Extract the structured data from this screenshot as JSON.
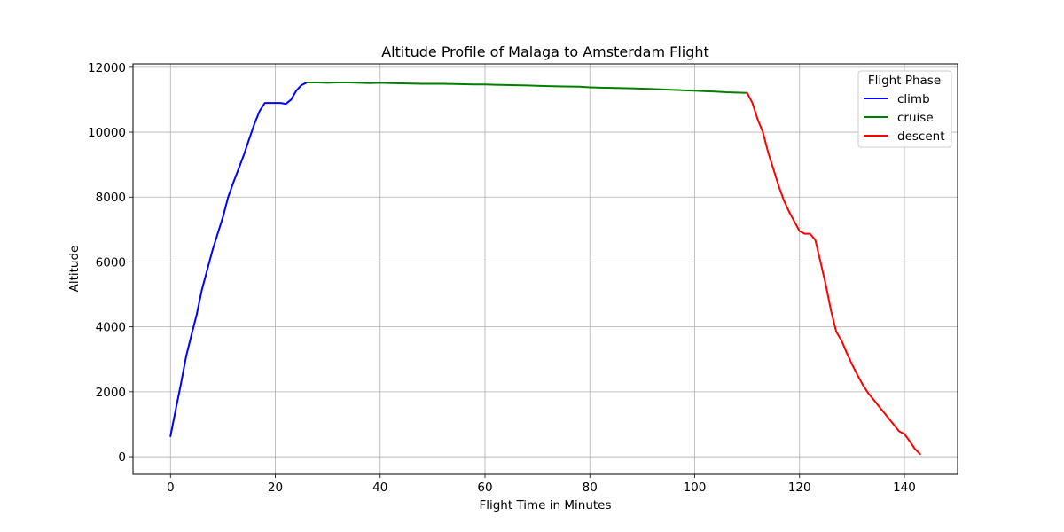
{
  "chart_data": {
    "type": "line",
    "title": "Altitude Profile of Malaga to Amsterdam Flight",
    "xlabel": "Flight Time in Minutes",
    "ylabel": "Altitude",
    "xlim": [
      -7.15,
      150.15
    ],
    "ylim": [
      -545,
      12105
    ],
    "xticks": [
      0,
      20,
      40,
      60,
      80,
      100,
      120,
      140
    ],
    "yticks": [
      0,
      2000,
      4000,
      6000,
      8000,
      10000,
      12000
    ],
    "grid": true,
    "legend": {
      "title": "Flight Phase",
      "placement": "top-right"
    },
    "series": [
      {
        "name": "climb",
        "color": "#0000ff",
        "points": [
          [
            0,
            630
          ],
          [
            1,
            1450
          ],
          [
            2,
            2250
          ],
          [
            3,
            3100
          ],
          [
            4,
            3750
          ],
          [
            5,
            4380
          ],
          [
            6,
            5150
          ],
          [
            7,
            5750
          ],
          [
            8,
            6350
          ],
          [
            9,
            6870
          ],
          [
            10,
            7380
          ],
          [
            11,
            8000
          ],
          [
            12,
            8450
          ],
          [
            13,
            8870
          ],
          [
            14,
            9300
          ],
          [
            15,
            9780
          ],
          [
            16,
            10250
          ],
          [
            17,
            10650
          ],
          [
            18,
            10900
          ],
          [
            19,
            10900
          ],
          [
            20,
            10900
          ],
          [
            21,
            10900
          ],
          [
            22,
            10870
          ],
          [
            23,
            11000
          ],
          [
            24,
            11280
          ],
          [
            25,
            11450
          ],
          [
            26,
            11530
          ]
        ]
      },
      {
        "name": "cruise",
        "color": "#008000",
        "points": [
          [
            26,
            11530
          ],
          [
            28,
            11530
          ],
          [
            30,
            11520
          ],
          [
            32,
            11530
          ],
          [
            34,
            11530
          ],
          [
            36,
            11520
          ],
          [
            38,
            11510
          ],
          [
            40,
            11520
          ],
          [
            42,
            11510
          ],
          [
            45,
            11500
          ],
          [
            48,
            11490
          ],
          [
            50,
            11490
          ],
          [
            52,
            11490
          ],
          [
            55,
            11480
          ],
          [
            58,
            11470
          ],
          [
            60,
            11470
          ],
          [
            62,
            11460
          ],
          [
            65,
            11450
          ],
          [
            68,
            11440
          ],
          [
            70,
            11430
          ],
          [
            72,
            11420
          ],
          [
            75,
            11410
          ],
          [
            78,
            11400
          ],
          [
            80,
            11380
          ],
          [
            82,
            11370
          ],
          [
            85,
            11360
          ],
          [
            88,
            11350
          ],
          [
            90,
            11340
          ],
          [
            92,
            11330
          ],
          [
            95,
            11310
          ],
          [
            98,
            11290
          ],
          [
            100,
            11280
          ],
          [
            102,
            11260
          ],
          [
            104,
            11250
          ],
          [
            106,
            11230
          ],
          [
            108,
            11220
          ],
          [
            110,
            11210
          ]
        ]
      },
      {
        "name": "descent",
        "color": "#ff0000",
        "points": [
          [
            110,
            11210
          ],
          [
            111,
            10900
          ],
          [
            112,
            10400
          ],
          [
            113,
            10000
          ],
          [
            114,
            9380
          ],
          [
            115,
            8870
          ],
          [
            116,
            8350
          ],
          [
            117,
            7900
          ],
          [
            118,
            7550
          ],
          [
            119,
            7250
          ],
          [
            120,
            6950
          ],
          [
            121,
            6870
          ],
          [
            122,
            6870
          ],
          [
            123,
            6680
          ],
          [
            124,
            6000
          ],
          [
            125,
            5300
          ],
          [
            126,
            4500
          ],
          [
            127,
            3850
          ],
          [
            128,
            3580
          ],
          [
            129,
            3200
          ],
          [
            130,
            2850
          ],
          [
            131,
            2530
          ],
          [
            132,
            2230
          ],
          [
            133,
            1980
          ],
          [
            134,
            1780
          ],
          [
            135,
            1580
          ],
          [
            136,
            1380
          ],
          [
            137,
            1180
          ],
          [
            138,
            980
          ],
          [
            139,
            780
          ],
          [
            140,
            700
          ],
          [
            141,
            480
          ],
          [
            142,
            240
          ],
          [
            143,
            80
          ]
        ]
      }
    ]
  }
}
